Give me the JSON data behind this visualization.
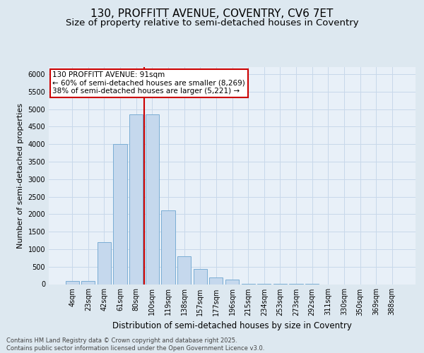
{
  "title_line1": "130, PROFFITT AVENUE, COVENTRY, CV6 7ET",
  "title_line2": "Size of property relative to semi-detached houses in Coventry",
  "xlabel": "Distribution of semi-detached houses by size in Coventry",
  "ylabel": "Number of semi-detached properties",
  "categories": [
    "4sqm",
    "23sqm",
    "42sqm",
    "61sqm",
    "80sqm",
    "100sqm",
    "119sqm",
    "138sqm",
    "157sqm",
    "177sqm",
    "196sqm",
    "215sqm",
    "234sqm",
    "253sqm",
    "273sqm",
    "292sqm",
    "311sqm",
    "330sqm",
    "350sqm",
    "369sqm",
    "388sqm"
  ],
  "values": [
    100,
    100,
    1200,
    4000,
    4850,
    4850,
    2100,
    800,
    430,
    200,
    140,
    20,
    10,
    5,
    2,
    1,
    0,
    0,
    0,
    0,
    0
  ],
  "bar_color": "#c5d8ed",
  "bar_edge_color": "#7aadd4",
  "vline_color": "#cc0000",
  "annotation_text": "130 PROFFITT AVENUE: 91sqm\n← 60% of semi-detached houses are smaller (8,269)\n38% of semi-detached houses are larger (5,221) →",
  "annotation_box_facecolor": "#ffffff",
  "annotation_box_edgecolor": "#cc0000",
  "ylim_max": 6200,
  "ytick_step": 500,
  "grid_color": "#c8d8ea",
  "bg_color": "#dde8f0",
  "plot_bg_color": "#e8f0f8",
  "footer_text": "Contains HM Land Registry data © Crown copyright and database right 2025.\nContains public sector information licensed under the Open Government Licence v3.0.",
  "title_fontsize": 11,
  "subtitle_fontsize": 9.5,
  "tick_fontsize": 7,
  "ylabel_fontsize": 8,
  "xlabel_fontsize": 8.5,
  "annotation_fontsize": 7.5,
  "footer_fontsize": 6
}
